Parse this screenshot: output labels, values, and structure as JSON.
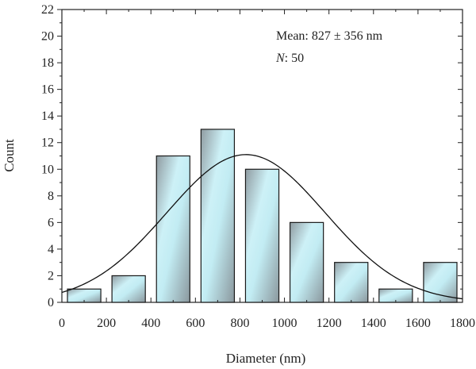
{
  "chart_data": {
    "type": "bar",
    "subtype": "histogram",
    "xlabel": "Diameter (nm)",
    "ylabel": "Count",
    "xlim": [
      0,
      1800
    ],
    "ylim": [
      0,
      22
    ],
    "xticks": [
      0,
      200,
      400,
      600,
      800,
      1000,
      1200,
      1400,
      1600,
      1800
    ],
    "yticks": [
      0,
      2,
      4,
      6,
      8,
      10,
      12,
      14,
      16,
      18,
      20,
      22
    ],
    "bins": [
      {
        "x0": 25,
        "x1": 175,
        "count": 1
      },
      {
        "x0": 225,
        "x1": 375,
        "count": 2
      },
      {
        "x0": 425,
        "x1": 575,
        "count": 11
      },
      {
        "x0": 625,
        "x1": 775,
        "count": 13
      },
      {
        "x0": 825,
        "x1": 975,
        "count": 10
      },
      {
        "x0": 1025,
        "x1": 1175,
        "count": 6
      },
      {
        "x0": 1225,
        "x1": 1375,
        "count": 3
      },
      {
        "x0": 1425,
        "x1": 1575,
        "count": 1
      },
      {
        "x0": 1625,
        "x1": 1775,
        "count": 3
      }
    ],
    "fit": {
      "type": "gaussian",
      "mean": 827,
      "sd": 356,
      "peak": 11.1
    },
    "annotation": {
      "mean_text": "Mean: 827 ± 356 nm",
      "n_label": "N",
      "n_value": ": 50"
    },
    "grid": false,
    "colors": {
      "bar_light": "#cdf1f7",
      "bar_dark": "#8d9aa0",
      "bar_edge": "#1a1a1a",
      "curve": "#111111"
    }
  }
}
